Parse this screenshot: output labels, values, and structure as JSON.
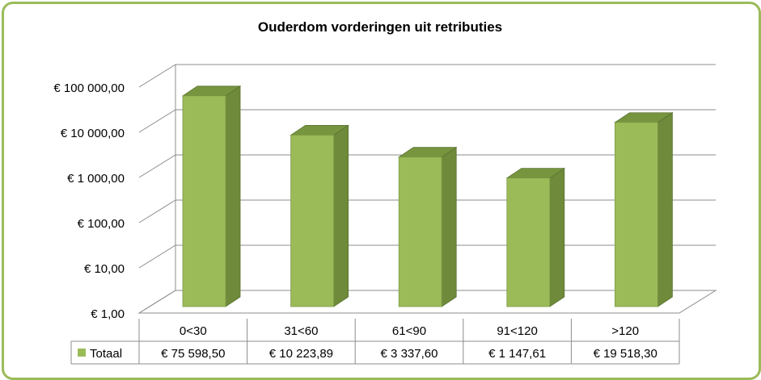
{
  "chart_data": {
    "type": "bar",
    "title": "Ouderdom vorderingen uit retributies",
    "xlabel": "",
    "ylabel": "",
    "y_scale": "log",
    "ylim": [
      1,
      100000
    ],
    "y_ticks": [
      {
        "value": 1,
        "label": "€  1,00"
      },
      {
        "value": 10,
        "label": "€  10,00"
      },
      {
        "value": 100,
        "label": "€  100,00"
      },
      {
        "value": 1000,
        "label": "€ 1 000,00"
      },
      {
        "value": 10000,
        "label": "€ 10 000,00"
      },
      {
        "value": 100000,
        "label": "€ 100 000,00"
      }
    ],
    "grid": true,
    "legend": "data-table",
    "categories": [
      "0<30",
      "31<60",
      "61<90",
      "91<120",
      ">120"
    ],
    "series": [
      {
        "name": "Totaal",
        "color": "#9bbb59",
        "values": [
          75598.5,
          10223.89,
          3337.6,
          1147.61,
          19518.3
        ],
        "value_labels": [
          "€ 75 598,50",
          "€ 10 223,89",
          "€ 3 337,60",
          "€ 1 147,61",
          "€ 19 518,30"
        ]
      }
    ]
  }
}
